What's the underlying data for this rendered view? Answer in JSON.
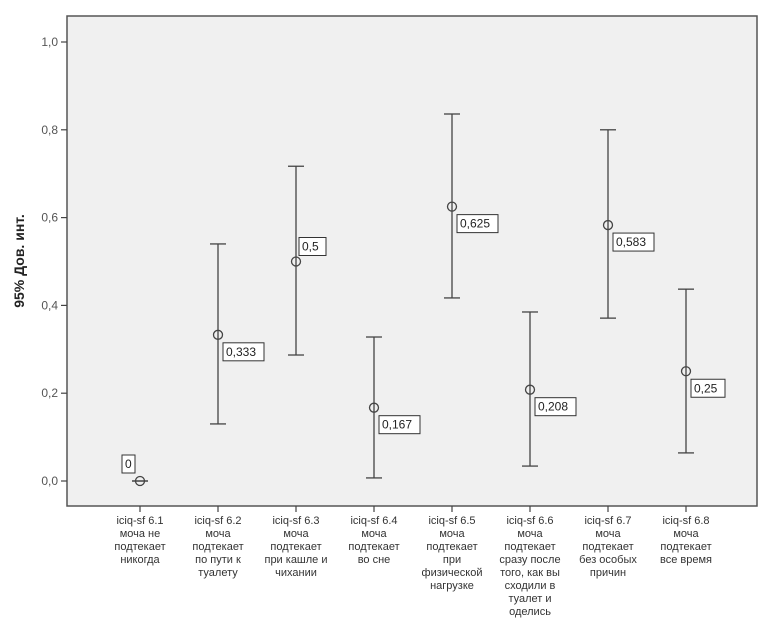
{
  "chart_data": {
    "type": "errorbar",
    "title": "",
    "xlabel": "",
    "ylabel": "95% Дов. инт.",
    "ylim": [
      0.0,
      1.0
    ],
    "y_ticks": [
      0.0,
      0.2,
      0.4,
      0.6,
      0.8,
      1.0
    ],
    "y_tick_labels": [
      "0,0",
      "0,2",
      "0,4",
      "0,6",
      "0,8",
      "1,0"
    ],
    "grid": false,
    "categories": [
      [
        "iciq-sf 6.1",
        "моча не",
        "подтекает",
        "никогда"
      ],
      [
        "iciq-sf 6.2",
        "моча",
        "подтекает",
        "по пути к",
        "туалету"
      ],
      [
        "iciq-sf 6.3",
        "моча",
        "подтекает",
        "при кашле и",
        "чихании"
      ],
      [
        "iciq-sf 6.4",
        "моча",
        "подтекает",
        "во сне"
      ],
      [
        "iciq-sf 6.5",
        "моча",
        "подтекает",
        "при",
        "физической",
        "нагрузке"
      ],
      [
        "iciq-sf 6.6",
        "моча",
        "подтекает",
        "сразу после",
        "того, как вы",
        "сходили в",
        "туалет и",
        "оделись"
      ],
      [
        "iciq-sf 6.7",
        "моча",
        "подтекает",
        "без особых",
        "причин"
      ],
      [
        "iciq-sf 6.8",
        "моча",
        "подтекает",
        "все время"
      ]
    ],
    "means": [
      0,
      0.333,
      0.5,
      0.167,
      0.625,
      0.208,
      0.583,
      0.25
    ],
    "mean_labels": [
      "0",
      "0,333",
      "0,5",
      "0,167",
      "0,625",
      "0,208",
      "0,583",
      "0,25"
    ],
    "ci_lower": [
      0,
      0.13,
      0.287,
      0.007,
      0.417,
      0.034,
      0.371,
      0.064
    ],
    "ci_upper": [
      0,
      0.54,
      0.717,
      0.328,
      0.836,
      0.385,
      0.8,
      0.437
    ],
    "colors": {
      "plot_bg": "#f0f0f0",
      "line": "#444444"
    }
  }
}
